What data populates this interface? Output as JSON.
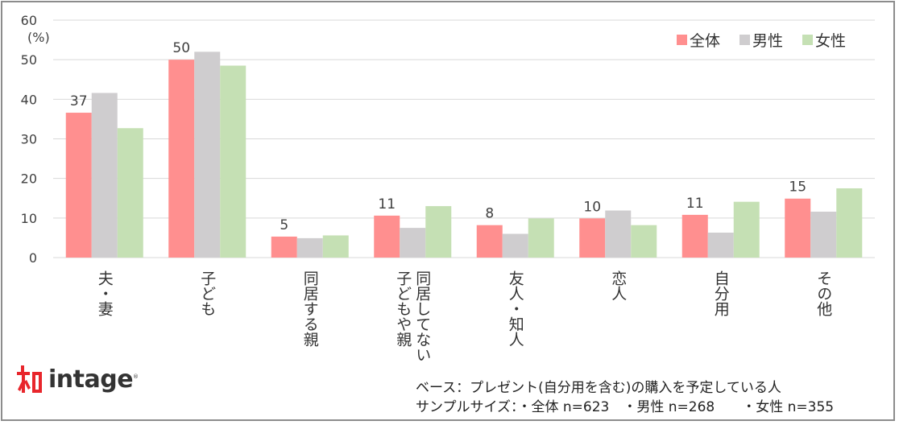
{
  "chart_data": {
    "type": "bar",
    "unit_label": "(%)",
    "ylim": [
      0,
      60
    ],
    "yticks": [
      0,
      10,
      20,
      30,
      40,
      50,
      60
    ],
    "categories": [
      "夫・妻",
      "子ども",
      "同居する親",
      "同居してない子どもや親",
      "友人・知人",
      "恋人",
      "自分用",
      "その他"
    ],
    "category_lines": [
      [
        "夫・妻"
      ],
      [
        "子ども"
      ],
      [
        "同居する親"
      ],
      [
        "同居してない",
        "子どもや親"
      ],
      [
        "友人・知人"
      ],
      [
        "恋人"
      ],
      [
        "自分用"
      ],
      [
        "その他"
      ]
    ],
    "series": [
      {
        "name": "全体",
        "color": "#ff8f8f",
        "values": [
          36.6,
          50.0,
          5.3,
          10.6,
          8.2,
          9.9,
          10.8,
          14.9
        ]
      },
      {
        "name": "男性",
        "color": "#cfcdcf",
        "values": [
          41.6,
          52.0,
          4.9,
          7.5,
          6.0,
          11.9,
          6.3,
          11.6
        ]
      },
      {
        "name": "女性",
        "color": "#c5e0b4",
        "values": [
          32.7,
          48.5,
          5.6,
          13.0,
          9.9,
          8.2,
          14.1,
          17.5
        ]
      }
    ],
    "data_labels": [
      "37",
      "50",
      "5",
      "11",
      "8",
      "10",
      "11",
      "15"
    ],
    "grid": true,
    "legend_position": "top-right"
  },
  "logo": {
    "text": "intage",
    "mark": "®"
  },
  "footnote": {
    "base": "ベース：プレゼント(自分用を含む)の購入を予定している人",
    "sample": "サンプルサイズ：・全体 n=623　・男性 n=268　　・女性 n=355"
  }
}
